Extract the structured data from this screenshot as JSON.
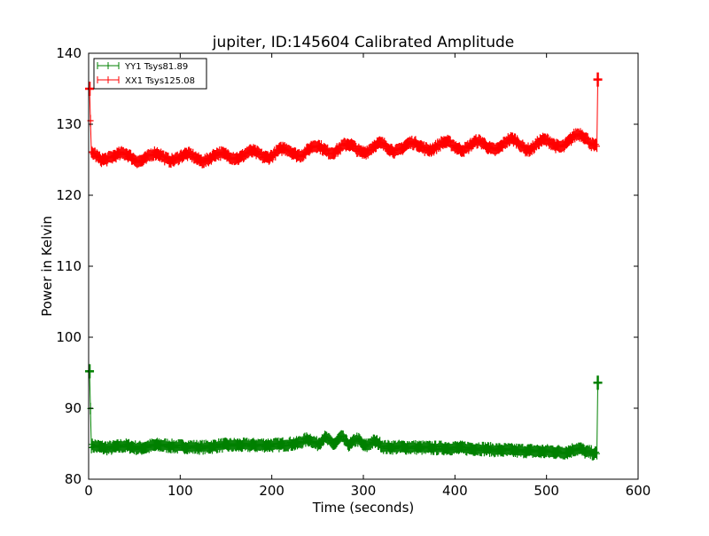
{
  "chart_data": {
    "type": "line",
    "title": "jupiter, ID:145604 Calibrated Amplitude",
    "xlabel": "Time (seconds)",
    "ylabel": "Power in Kelvin",
    "xlim": [
      0,
      600
    ],
    "ylim": [
      80,
      140
    ],
    "xticks": [
      0,
      100,
      200,
      300,
      400,
      500,
      600
    ],
    "yticks": [
      80,
      90,
      100,
      110,
      120,
      130,
      140
    ],
    "grid": false,
    "legend_position": "top-left",
    "series": [
      {
        "name": "YY1 Tsys81.89",
        "color": "#008000",
        "keypoints": [
          [
            1,
            95.2
          ],
          [
            3,
            84.7
          ],
          [
            20,
            84.4
          ],
          [
            40,
            84.7
          ],
          [
            55,
            84.4
          ],
          [
            75,
            84.8
          ],
          [
            100,
            84.6
          ],
          [
            125,
            84.5
          ],
          [
            150,
            84.8
          ],
          [
            175,
            84.8
          ],
          [
            200,
            84.8
          ],
          [
            225,
            85.0
          ],
          [
            240,
            85.6
          ],
          [
            250,
            85.0
          ],
          [
            258,
            85.8
          ],
          [
            268,
            85.0
          ],
          [
            276,
            85.9
          ],
          [
            285,
            84.9
          ],
          [
            293,
            85.6
          ],
          [
            302,
            84.7
          ],
          [
            312,
            85.3
          ],
          [
            325,
            84.5
          ],
          [
            350,
            84.5
          ],
          [
            375,
            84.4
          ],
          [
            400,
            84.4
          ],
          [
            425,
            84.3
          ],
          [
            450,
            84.1
          ],
          [
            475,
            84.0
          ],
          [
            500,
            83.9
          ],
          [
            520,
            83.8
          ],
          [
            535,
            84.3
          ],
          [
            545,
            83.8
          ],
          [
            555,
            83.6
          ],
          [
            556,
            93.6
          ]
        ]
      },
      {
        "name": "XX1 Tsys125.08",
        "color": "#ff0000",
        "keypoints": [
          [
            1,
            135.0
          ],
          [
            3,
            126.0
          ],
          [
            15,
            125.0
          ],
          [
            38,
            125.9
          ],
          [
            55,
            124.8
          ],
          [
            73,
            125.9
          ],
          [
            90,
            124.9
          ],
          [
            108,
            125.8
          ],
          [
            125,
            124.8
          ],
          [
            143,
            125.9
          ],
          [
            162,
            125.2
          ],
          [
            178,
            126.2
          ],
          [
            195,
            125.3
          ],
          [
            213,
            126.6
          ],
          [
            230,
            125.6
          ],
          [
            248,
            127.0
          ],
          [
            265,
            126.0
          ],
          [
            283,
            127.2
          ],
          [
            300,
            126.0
          ],
          [
            318,
            127.3
          ],
          [
            335,
            126.2
          ],
          [
            353,
            127.4
          ],
          [
            372,
            126.4
          ],
          [
            390,
            127.5
          ],
          [
            408,
            126.4
          ],
          [
            425,
            127.6
          ],
          [
            443,
            126.4
          ],
          [
            462,
            127.9
          ],
          [
            480,
            126.4
          ],
          [
            497,
            127.8
          ],
          [
            515,
            126.8
          ],
          [
            535,
            128.6
          ],
          [
            555,
            126.9
          ],
          [
            556,
            136.3
          ]
        ]
      }
    ]
  }
}
